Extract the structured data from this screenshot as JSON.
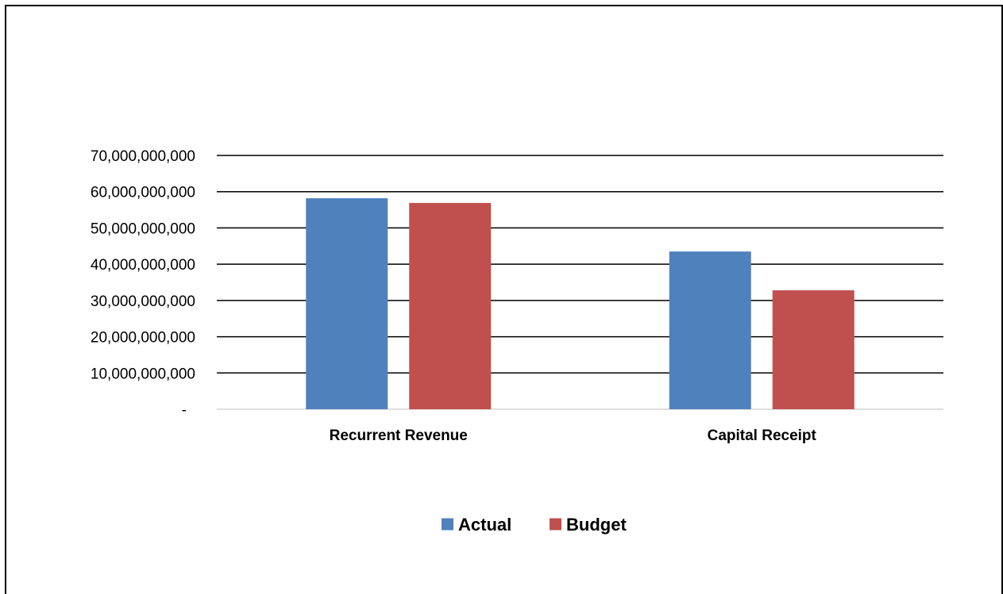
{
  "chart_data": {
    "type": "bar",
    "categories": [
      "Recurrent Revenue",
      "Capital Receipt"
    ],
    "series": [
      {
        "name": "Actual",
        "values": [
          58200000000,
          43500000000
        ],
        "color": "#4F81BD"
      },
      {
        "name": "Budget",
        "values": [
          56900000000,
          32800000000
        ],
        "color": "#C0504D"
      }
    ],
    "title": "",
    "xlabel": "",
    "ylabel": "",
    "ylim": [
      0,
      70000000000
    ],
    "yticks": [
      0,
      10000000000,
      20000000000,
      30000000000,
      40000000000,
      50000000000,
      60000000000,
      70000000000
    ],
    "ytick_labels": [
      "-",
      "10,000,000,000",
      "20,000,000,000",
      "30,000,000,000",
      "40,000,000,000",
      "50,000,000,000",
      "60,000,000,000",
      "70,000,000,000"
    ],
    "grid": true,
    "legend_position": "bottom"
  }
}
